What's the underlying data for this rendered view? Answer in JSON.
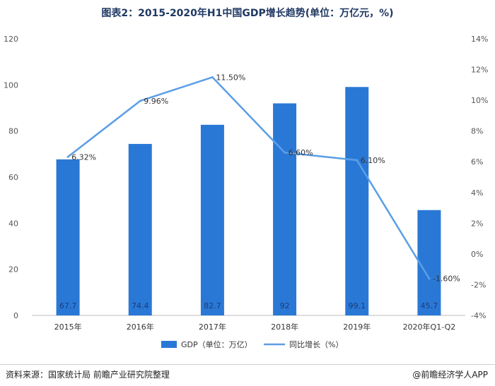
{
  "chart_data": {
    "type": "bar",
    "title": "图表2：2015-2020年H1中国GDP增长趋势(单位：万亿元，%)",
    "categories": [
      "2015年",
      "2016年",
      "2017年",
      "2018年",
      "2019年",
      "2020年Q1-Q2"
    ],
    "series": [
      {
        "name": "GDP（单位：万亿）",
        "type": "bar",
        "axis": "left",
        "color": "#2a78d6",
        "values": [
          67.7,
          74.4,
          82.7,
          92,
          99.1,
          45.7
        ],
        "labels": [
          "67.7",
          "74.4",
          "82.7",
          "92",
          "99.1",
          "45.7"
        ]
      },
      {
        "name": "同比增长（%）",
        "type": "line",
        "axis": "right",
        "color": "#5b9ee6",
        "values": [
          6.32,
          9.96,
          11.5,
          6.6,
          6.1,
          -1.6
        ],
        "labels": [
          "6.32%",
          "9.96%",
          "11.50%",
          "6.60%",
          "6.10%",
          "-1.60%"
        ]
      }
    ],
    "ylim_left": [
      0,
      120
    ],
    "yticks_left": [
      "0",
      "20",
      "40",
      "60",
      "80",
      "100",
      "120"
    ],
    "ylim_right": [
      -4,
      14
    ],
    "yticks_right": [
      "-4%",
      "-2%",
      "0%",
      "2%",
      "4%",
      "6%",
      "8%",
      "10%",
      "12%",
      "14%"
    ],
    "legend_position": "bottom",
    "grid": false
  },
  "footer": {
    "source": "资料来源：国家统计局 前瞻产业研究院整理",
    "credit": "@前瞻经济学人APP"
  }
}
